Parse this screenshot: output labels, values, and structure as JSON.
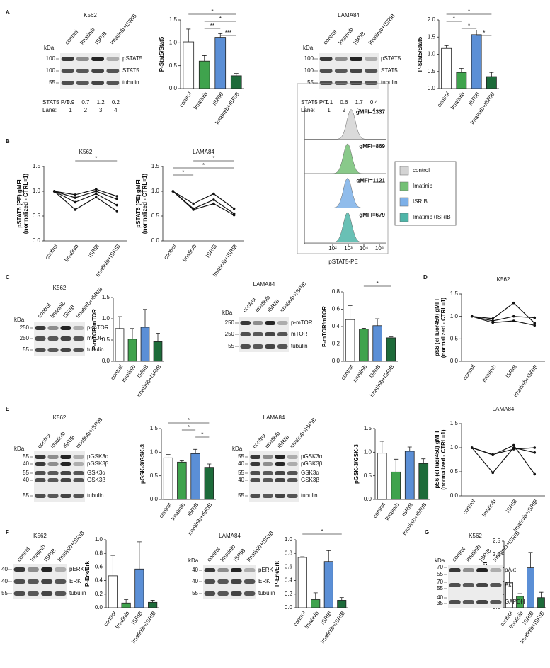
{
  "panels": [
    "A",
    "B",
    "C",
    "D",
    "E",
    "F",
    "G"
  ],
  "chart_data": [
    {
      "type": "bar",
      "ylabel": "P-Stat5/Stat5",
      "categories": [
        "control",
        "Imatinib",
        "ISRIB",
        "Imatinib+ISRIB"
      ],
      "values": [
        1.02,
        0.6,
        1.12,
        0.28
      ],
      "errors": [
        0.28,
        0.12,
        0.08,
        0.05
      ],
      "colors": [
        "#ffffff",
        "#3fa34d",
        "#5b8fd6",
        "#1d6b3a"
      ],
      "ylim": [
        0,
        1.5
      ],
      "yticks": [
        {
          "value": 0,
          "label": "0.0"
        },
        {
          "value": 0.5,
          "label": "0.5"
        },
        {
          "value": 1,
          "label": "1.0"
        },
        {
          "value": 1.5,
          "label": "1.5"
        }
      ],
      "significance": [
        {
          "between": [
            "control",
            "Imatinib+ISRIB"
          ],
          "label": "*"
        },
        {
          "between": [
            "Imatinib",
            "Imatinib+ISRIB"
          ],
          "label": "*"
        },
        {
          "between": [
            "Imatinib",
            "ISRIB"
          ],
          "label": "**"
        },
        {
          "between": [
            "ISRIB",
            "Imatinib+ISRIB"
          ],
          "label": "***"
        }
      ]
    },
    {
      "type": "bar",
      "ylabel": "P-Stat5/Stat5",
      "categories": [
        "control",
        "Imatinib",
        "ISRIB",
        "Imatinib+ISRIB"
      ],
      "values": [
        1.17,
        0.47,
        1.57,
        0.35
      ],
      "errors": [
        0.08,
        0.12,
        0.13,
        0.12
      ],
      "colors": [
        "#ffffff",
        "#3fa34d",
        "#5b8fd6",
        "#1d6b3a"
      ],
      "ylim": [
        0,
        2
      ],
      "yticks": [
        {
          "value": 0,
          "label": "0.0"
        },
        {
          "value": 0.5,
          "label": "0.5"
        },
        {
          "value": 1,
          "label": "1.0"
        },
        {
          "value": 1.5,
          "label": "1.5"
        },
        {
          "value": 2,
          "label": "2.0"
        }
      ],
      "significance": [
        {
          "between": [
            "control",
            "Imatinib+ISRIB"
          ],
          "label": "*"
        },
        {
          "between": [
            "control",
            "Imatinib"
          ],
          "label": "*"
        },
        {
          "between": [
            "Imatinib",
            "ISRIB"
          ],
          "label": "*"
        },
        {
          "between": [
            "ISRIB",
            "Imatinib+ISRIB"
          ],
          "label": "*"
        }
      ]
    },
    {
      "type": "line",
      "title": "K562",
      "ylabel": [
        "pSTAT5 (PE) gMFI",
        "(normalized - CTRL=1)"
      ],
      "categories": [
        "control",
        "Imatinib",
        "ISRIB",
        "Imatinib+ISRIB"
      ],
      "ylim": [
        0,
        1.5
      ],
      "yticks": [
        {
          "value": 0,
          "label": "0.0"
        },
        {
          "value": 0.5,
          "label": "0.5"
        },
        {
          "value": 1,
          "label": "1.0"
        },
        {
          "value": 1.5,
          "label": "1.5"
        }
      ],
      "series": [
        {
          "values": [
            1,
            0.93,
            1.04,
            0.9
          ]
        },
        {
          "values": [
            1,
            0.87,
            1.0,
            0.84
          ]
        },
        {
          "values": [
            1,
            0.78,
            0.95,
            0.72
          ]
        },
        {
          "values": [
            1,
            0.63,
            0.88,
            0.6
          ]
        }
      ],
      "significance": [
        {
          "between": [
            "Imatinib",
            "Imatinib+ISRIB"
          ],
          "label": "*"
        }
      ]
    },
    {
      "type": "line",
      "title": "LAMA84",
      "ylabel": [
        "pSTAT5 (PE) gMFI",
        "(normalized - CTRL=1)"
      ],
      "categories": [
        "control",
        "Imatinib",
        "ISRIB",
        "Imatinib+ISRIB"
      ],
      "ylim": [
        0,
        1.5
      ],
      "yticks": [
        {
          "value": 0,
          "label": "0.0"
        },
        {
          "value": 0.5,
          "label": "0.5"
        },
        {
          "value": 1,
          "label": "1.0"
        },
        {
          "value": 1.5,
          "label": "1.5"
        }
      ],
      "series": [
        {
          "values": [
            1,
            0.75,
            0.95,
            0.65
          ]
        },
        {
          "values": [
            1,
            0.65,
            0.83,
            0.55
          ]
        },
        {
          "values": [
            1,
            0.63,
            0.75,
            0.52
          ]
        }
      ],
      "significance": [
        {
          "between": [
            "Imatinib",
            "Imatinib+ISRIB"
          ],
          "label": "*"
        },
        {
          "between": [
            "control",
            "Imatinib+ISRIB"
          ],
          "label": "*"
        },
        {
          "between": [
            "control",
            "Imatinib"
          ],
          "label": "*"
        }
      ]
    },
    {
      "type": "bar",
      "ylabel": "P-mTOR/mTOR",
      "categories": [
        "control",
        "Imatinib",
        "ISRIB",
        "Imatinib+ISRIB"
      ],
      "values": [
        0.77,
        0.52,
        0.8,
        0.46
      ],
      "errors": [
        0.28,
        0.25,
        0.42,
        0.2
      ],
      "colors": [
        "#ffffff",
        "#3fa34d",
        "#5b8fd6",
        "#1d6b3a"
      ],
      "ylim": [
        0,
        1.5
      ],
      "yticks": [
        {
          "value": 0,
          "label": "0.0"
        },
        {
          "value": 0.5,
          "label": "0.5"
        },
        {
          "value": 1,
          "label": "1.0"
        },
        {
          "value": 1.5,
          "label": "1.5"
        }
      ],
      "significance": []
    },
    {
      "type": "bar",
      "ylabel": "P-mTOR/mTOR",
      "categories": [
        "control",
        "Imatinib",
        "ISRIB",
        "Imatinib+ISRIB"
      ],
      "values": [
        0.48,
        0.37,
        0.41,
        0.27
      ],
      "errors": [
        0.16,
        0.01,
        0.08,
        0.01
      ],
      "colors": [
        "#ffffff",
        "#3fa34d",
        "#5b8fd6",
        "#1d6b3a"
      ],
      "ylim": [
        0,
        0.8
      ],
      "yticks": [
        {
          "value": 0,
          "label": "0.0"
        },
        {
          "value": 0.2,
          "label": "0.2"
        },
        {
          "value": 0.4,
          "label": "0.4"
        },
        {
          "value": 0.6,
          "label": "0.6"
        },
        {
          "value": 0.8,
          "label": "0.8"
        }
      ],
      "significance": [
        {
          "between": [
            "Imatinib",
            "Imatinib+ISRIB"
          ],
          "label": "*"
        }
      ]
    },
    {
      "type": "line",
      "title": "K562",
      "ylabel": [
        "pS6 (eFluor450) gMFI",
        "(normalized - CTRL=1)"
      ],
      "categories": [
        "control",
        "Imatinib",
        "ISRIB",
        "Imatinib+ISRIB"
      ],
      "ylim": [
        0,
        1.5
      ],
      "yticks": [
        {
          "value": 0,
          "label": "0.0"
        },
        {
          "value": 0.5,
          "label": "0.5"
        },
        {
          "value": 1,
          "label": "1.0"
        },
        {
          "value": 1.5,
          "label": "1.5"
        }
      ],
      "series": [
        {
          "values": [
            1,
            0.95,
            1.3,
            0.85
          ]
        },
        {
          "values": [
            1,
            0.9,
            1.0,
            0.97
          ]
        },
        {
          "values": [
            1,
            0.86,
            0.9,
            0.8
          ]
        }
      ],
      "significance": []
    },
    {
      "type": "bar",
      "ylabel": "pGSK-3/GSK-3",
      "categories": [
        "control",
        "Imatinib",
        "ISRIB",
        "Imatinib+ISRIB"
      ],
      "values": [
        0.88,
        0.79,
        0.97,
        0.68
      ],
      "errors": [
        0.07,
        0.03,
        0.09,
        0.07
      ],
      "colors": [
        "#ffffff",
        "#3fa34d",
        "#5b8fd6",
        "#1d6b3a"
      ],
      "ylim": [
        0,
        1.5
      ],
      "yticks": [
        {
          "value": 0,
          "label": "0.0"
        },
        {
          "value": 0.5,
          "label": "0.5"
        },
        {
          "value": 1,
          "label": "1.0"
        },
        {
          "value": 1.5,
          "label": "1.5"
        }
      ],
      "significance": [
        {
          "between": [
            "control",
            "Imatinib+ISRIB"
          ],
          "label": "*"
        },
        {
          "between": [
            "Imatinib",
            "ISRIB"
          ],
          "label": "*"
        },
        {
          "between": [
            "ISRIB",
            "Imatinib+ISRIB"
          ],
          "label": "*"
        }
      ]
    },
    {
      "type": "bar",
      "ylabel": "pGSK-3/GSK-3",
      "categories": [
        "control",
        "Imatinib",
        "ISRIB",
        "Imatinib+ISRIB"
      ],
      "values": [
        0.98,
        0.58,
        1.02,
        0.76
      ],
      "errors": [
        0.25,
        0.27,
        0.09,
        0.1
      ],
      "colors": [
        "#ffffff",
        "#3fa34d",
        "#5b8fd6",
        "#1d6b3a"
      ],
      "ylim": [
        0,
        1.5
      ],
      "yticks": [
        {
          "value": 0,
          "label": "0.0"
        },
        {
          "value": 0.5,
          "label": "0.5"
        },
        {
          "value": 1,
          "label": "1.0"
        },
        {
          "value": 1.5,
          "label": "1.5"
        }
      ],
      "significance": []
    },
    {
      "type": "line",
      "title": "LAMA84",
      "ylabel": [
        "pS6 (eFluor450) gMFI",
        "(normalized - CTRL=1)"
      ],
      "categories": [
        "control",
        "Imatinib",
        "ISRIB",
        "Imatinib+ISRIB"
      ],
      "ylim": [
        0,
        1.5
      ],
      "yticks": [
        {
          "value": 0,
          "label": "0.0"
        },
        {
          "value": 0.5,
          "label": "0.5"
        },
        {
          "value": 1,
          "label": "1.0"
        },
        {
          "value": 1.5,
          "label": "1.5"
        }
      ],
      "series": [
        {
          "values": [
            1,
            0.85,
            1.05,
            0.45
          ]
        },
        {
          "values": [
            1,
            0.48,
            1.0,
            0.9
          ]
        },
        {
          "values": [
            1,
            0.86,
            0.97,
            1.0
          ]
        }
      ],
      "significance": []
    },
    {
      "type": "bar",
      "ylabel": "P-Erk/Erk",
      "categories": [
        "control",
        "Imatinib",
        "ISRIB",
        "Imatinib+ISRIB"
      ],
      "values": [
        0.47,
        0.07,
        0.57,
        0.08
      ],
      "errors": [
        0.3,
        0.05,
        0.4,
        0.03
      ],
      "colors": [
        "#ffffff",
        "#3fa34d",
        "#5b8fd6",
        "#1d6b3a"
      ],
      "ylim": [
        0,
        1
      ],
      "yticks": [
        {
          "value": 0,
          "label": "0.0"
        },
        {
          "value": 0.2,
          "label": "0.2"
        },
        {
          "value": 0.4,
          "label": "0.4"
        },
        {
          "value": 0.6,
          "label": "0.6"
        },
        {
          "value": 0.8,
          "label": "0.8"
        },
        {
          "value": 1,
          "label": "1.0"
        }
      ],
      "significance": []
    },
    {
      "type": "bar",
      "ylabel": "P-Erk/Erk",
      "categories": [
        "control",
        "Imatinib",
        "ISRIB",
        "Imatinib+ISRIB"
      ],
      "values": [
        0.74,
        0.12,
        0.68,
        0.11
      ],
      "errors": [
        0.01,
        0.1,
        0.16,
        0.04
      ],
      "colors": [
        "#ffffff",
        "#3fa34d",
        "#5b8fd6",
        "#1d6b3a"
      ],
      "ylim": [
        0,
        1
      ],
      "yticks": [
        {
          "value": 0,
          "label": "0.0"
        },
        {
          "value": 0.2,
          "label": "0.2"
        },
        {
          "value": 0.4,
          "label": "0.4"
        },
        {
          "value": 0.6,
          "label": "0.6"
        },
        {
          "value": 0.8,
          "label": "0.8"
        },
        {
          "value": 1,
          "label": "1.0"
        }
      ],
      "significance": [
        {
          "between": [
            "control",
            "Imatinib+ISRIB"
          ],
          "label": "*"
        }
      ]
    },
    {
      "type": "bar",
      "ylabel": "P-Akt/Akt",
      "categories": [
        "control",
        "Imatinib",
        "ISRIB",
        "Imatinib+ISRIB"
      ],
      "values": [
        0.95,
        0.43,
        1.5,
        0.38
      ],
      "errors": [
        0.4,
        0.1,
        0.58,
        0.2
      ],
      "colors": [
        "#ffffff",
        "#3fa34d",
        "#5b8fd6",
        "#1d6b3a"
      ],
      "ylim": [
        0,
        2.5
      ],
      "yticks": [
        {
          "value": 0,
          "label": "0.0"
        },
        {
          "value": 0.5,
          "label": "0.5"
        },
        {
          "value": 1,
          "label": "1.0"
        },
        {
          "value": 1.5,
          "label": "1.5"
        },
        {
          "value": 2,
          "label": "2.0"
        },
        {
          "value": 2.5,
          "label": "2.5"
        }
      ],
      "significance": []
    }
  ],
  "blots": [
    {
      "title": "K562",
      "kda": "kDa",
      "markers": [
        "100",
        "100",
        "55"
      ],
      "bands": [
        "pSTAT5",
        "STAT5",
        "tubulin"
      ],
      "lanes": [
        "control",
        "Imatinib",
        "ISRIB",
        "Imatinib+ISRIB"
      ],
      "pt_label": "STAT5 P/T",
      "pt": [
        0.9,
        0.7,
        1.2,
        0.2
      ],
      "lane_label": "Lane:",
      "lane_numbers": [
        1,
        2,
        3,
        4
      ]
    },
    {
      "title": "LAMA84",
      "kda": "kDa",
      "markers": [
        "100",
        "100",
        "55"
      ],
      "bands": [
        "pSTAT5",
        "STAT5",
        "tubulin"
      ],
      "lanes": [
        "control",
        "Imatinib",
        "ISRIB",
        "Imatinib+ISRIB"
      ],
      "pt_label": "STAT5 P/T",
      "pt": [
        1.1,
        0.6,
        1.7,
        0.4
      ],
      "lane_label": "Lane:",
      "lane_numbers": [
        1,
        2,
        3,
        4
      ]
    },
    {
      "title": "K562",
      "kda": "kDa",
      "markers": [
        "250",
        "250",
        "55"
      ],
      "bands": [
        "p-mTOR",
        "mTOR",
        "tubulin"
      ],
      "lanes": [
        "control",
        "Imatinib",
        "ISRIB",
        "Imatinib+ISRIB"
      ]
    },
    {
      "title": "LAMA84",
      "kda": "kDa",
      "markers": [
        "250",
        "250",
        "55"
      ],
      "bands": [
        "p-mTOR",
        "mTOR",
        "tubulin"
      ],
      "lanes": [
        "control",
        "Imatinib",
        "ISRIB",
        "Imatinib+ISRIB"
      ]
    },
    {
      "title": "K562",
      "kda": "kDa",
      "markers": [
        "55",
        "40",
        "55",
        "40",
        "55"
      ],
      "bands": [
        "pGSK3α",
        "pGSK3β",
        "GSK3α",
        "GSK3β",
        "tubulin"
      ],
      "lanes": [
        "control",
        "Imatinib",
        "ISRIB",
        "Imatinib+ISRIB"
      ]
    },
    {
      "title": "LAMA84",
      "kda": "kDa",
      "markers": [
        "55",
        "40",
        "55",
        "40",
        "55"
      ],
      "bands": [
        "pGSK3α",
        "pGSK3β",
        "GSK3α",
        "GSK3β",
        "tubulin"
      ],
      "lanes": [
        "control",
        "Imatinib",
        "ISRIB",
        "Imatinib+ISRIB"
      ]
    },
    {
      "title": "K562",
      "markers": [
        "40",
        "40",
        "55"
      ],
      "bands": [
        "pERK",
        "ERK",
        "tubulin"
      ],
      "lanes": [
        "control",
        "Imatinib",
        "ISRIB",
        "Imatinib+ISRIB"
      ]
    },
    {
      "title": "LAMA84",
      "kda": "kDa",
      "markers": [
        "40",
        "40",
        "55"
      ],
      "bands": [
        "pERK",
        "ERK",
        "tubulin"
      ],
      "lanes": [
        "control",
        "Imatinib",
        "ISRIB",
        "Imatinib+ISRIB"
      ]
    },
    {
      "title": "K562",
      "kda": "kDa",
      "markers": [
        "70",
        "55",
        "70",
        "55",
        "40",
        "35"
      ],
      "bands": [
        "pAkt",
        "Akt",
        "GAPDH"
      ],
      "lanes": [
        "control",
        "Imatinib",
        "ISRIB",
        "Imatinib+ISRIB"
      ]
    }
  ],
  "flow": {
    "gmfi": [
      "gMFI=1337",
      "gMFI=869",
      "gMFI=1121",
      "gMFI=679"
    ],
    "legend": [
      "control",
      "Imatinib",
      "ISRIB",
      "Imatinib+ISRIB"
    ],
    "colors": [
      "#d4d4d4",
      "#74c076",
      "#7db0e8",
      "#4fb5a8"
    ],
    "xticks": [
      "10²",
      "10³",
      "10⁴",
      "10⁵"
    ],
    "xlabel": "pSTAT5-PE"
  }
}
